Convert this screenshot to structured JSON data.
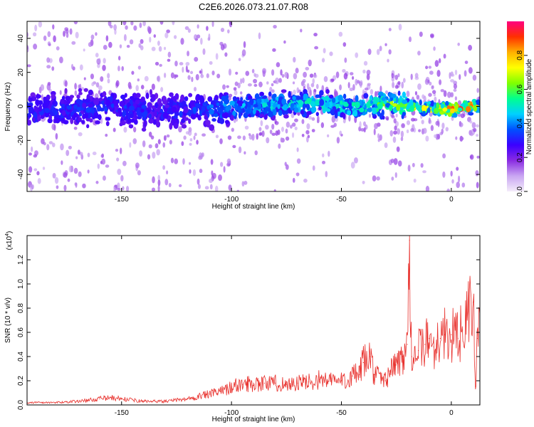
{
  "page": {
    "title": "C2E6.2026.073.21.07.R08"
  },
  "chart_data": [
    {
      "type": "heatmap",
      "name": "spectrogram",
      "title": "C2E6.2026.073.21.07.R08",
      "xlabel": "Height of straight line (km)",
      "ylabel": "Frequency (Hz)",
      "xlim": [
        -193,
        13
      ],
      "ylim": [
        -50,
        50
      ],
      "x_ticks": [
        -150,
        -100,
        -50,
        0
      ],
      "y_ticks": [
        40,
        20,
        0,
        -20,
        -40
      ],
      "colorbar": {
        "label": "Normalized spectral amplitude",
        "range": [
          0,
          1
        ],
        "ticks": [
          "0.0",
          "0.2",
          "0.4",
          "0.6",
          "0.8"
        ],
        "tick_values": [
          0,
          0.2,
          0.4,
          0.6,
          0.8
        ],
        "colors": [
          "#f4ecfa",
          "#c9a6f2",
          "#8a2be2",
          "#3b00ff",
          "#0050ff",
          "#00d0ff",
          "#00ff90",
          "#7fff00",
          "#ffff00",
          "#ffb000",
          "#ff3000",
          "#ff0080"
        ]
      },
      "ridge": {
        "x": [
          -193,
          -150,
          -130,
          -110,
          -100,
          -80,
          -60,
          -40,
          -30,
          -20,
          -10,
          0,
          10,
          13
        ],
        "center_hz": [
          -2,
          -1,
          -3,
          -1,
          -0.5,
          1,
          2,
          -1,
          2,
          1,
          -1,
          -2,
          0,
          0
        ],
        "peak_amplitude": [
          0.2,
          0.2,
          0.18,
          0.25,
          0.35,
          0.4,
          0.45,
          0.45,
          0.6,
          0.65,
          0.75,
          0.95,
          0.95,
          0.7
        ]
      }
    },
    {
      "type": "line",
      "name": "snr",
      "xlabel": "Height of straight line (km)",
      "ylabel": "SNR (10 * v/v)",
      "y_multiplier_label": "(x10",
      "y_multiplier_exp": "4",
      "y_multiplier_close": ")",
      "xlim": [
        -193,
        13
      ],
      "ylim": [
        0,
        1.4
      ],
      "x_ticks": [
        -150,
        -100,
        -50,
        0
      ],
      "y_ticks": [
        0,
        0.2,
        0.4,
        0.6,
        0.8,
        1.0,
        1.2
      ],
      "y_tick_labels": [
        "0.0",
        "0.2",
        "0.4",
        "0.6",
        "0.8",
        "1.0",
        "1.2"
      ],
      "series": [
        {
          "color": "#e8302c",
          "x": [
            -193,
            -180,
            -170,
            -160,
            -155,
            -150,
            -140,
            -130,
            -120,
            -115,
            -110,
            -105,
            -100,
            -95,
            -90,
            -85,
            -80,
            -75,
            -70,
            -65,
            -60,
            -55,
            -50,
            -45,
            -42,
            -40,
            -37,
            -35,
            -30,
            -28,
            -25,
            -22,
            -20,
            -19,
            -18,
            -15,
            -12,
            -10,
            -8,
            -5,
            -3,
            0,
            3,
            5,
            8,
            10,
            11,
            12,
            13
          ],
          "y": [
            0.02,
            0.02,
            0.03,
            0.05,
            0.06,
            0.05,
            0.03,
            0.03,
            0.05,
            0.07,
            0.09,
            0.11,
            0.15,
            0.17,
            0.18,
            0.18,
            0.18,
            0.17,
            0.18,
            0.19,
            0.21,
            0.2,
            0.2,
            0.24,
            0.25,
            0.35,
            0.4,
            0.25,
            0.2,
            0.28,
            0.33,
            0.4,
            0.5,
            1.36,
            0.4,
            0.45,
            0.5,
            0.55,
            0.48,
            0.55,
            0.58,
            0.58,
            0.55,
            0.62,
            0.75,
            0.85,
            0.15,
            0.55,
            0.65
          ]
        }
      ]
    }
  ]
}
